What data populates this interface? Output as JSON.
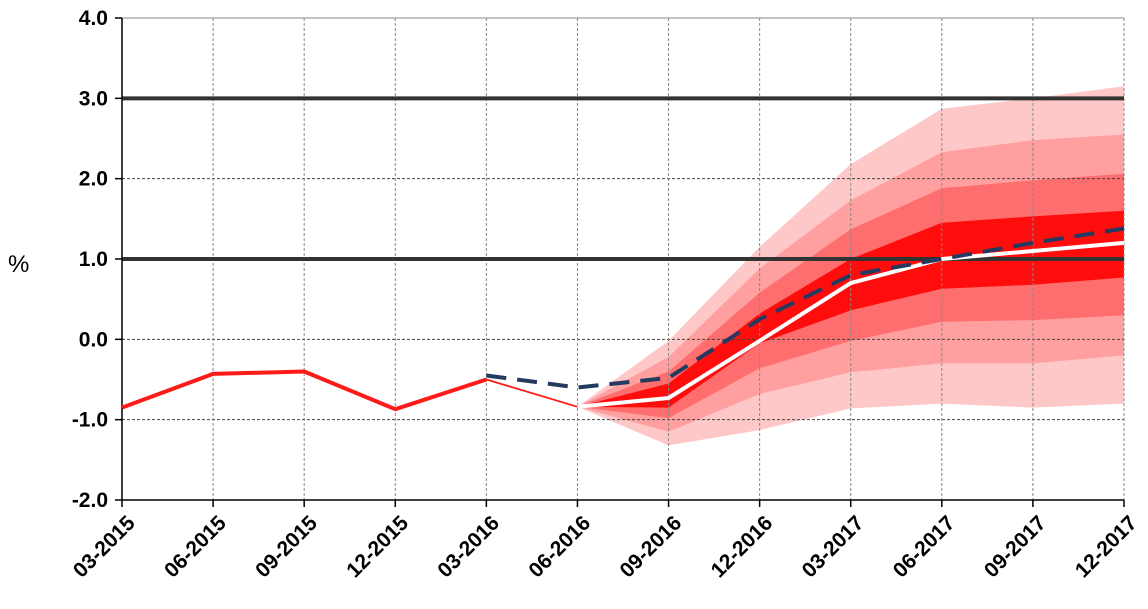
{
  "chart_data": {
    "type": "line",
    "title": "",
    "xlabel": "",
    "ylabel": "%",
    "ylim": [
      -2.0,
      4.0
    ],
    "y_ticks": [
      "4.0",
      "3.0",
      "2.0",
      "1.0",
      "0.0",
      "-1.0",
      "-2.0"
    ],
    "categories": [
      "03-2015",
      "06-2015",
      "09-2015",
      "12-2015",
      "03-2016",
      "06-2016",
      "09-2016",
      "12-2016",
      "03-2017",
      "06-2017",
      "09-2017",
      "12-2017"
    ],
    "grid": true,
    "reference_lines": [
      3.0,
      1.0
    ],
    "series": [
      {
        "values": [
          -0.85,
          -0.43,
          -0.4,
          -0.87,
          -0.5,
          null,
          null,
          null,
          null,
          null,
          null,
          null
        ],
        "color": "#ff1a1a",
        "style": "solid"
      },
      {
        "values": [
          null,
          null,
          null,
          null,
          -0.5,
          -0.84,
          null,
          null,
          null,
          null,
          null,
          null
        ],
        "color": "#ff1a1a",
        "style": "thin"
      },
      {
        "values": [
          null,
          null,
          null,
          null,
          null,
          -0.84,
          -0.73,
          -0.02,
          0.7,
          1.0,
          1.1,
          1.2
        ],
        "color": "#ffffff",
        "style": "solid"
      },
      {
        "values": [
          null,
          null,
          null,
          null,
          -0.45,
          -0.6,
          -0.48,
          0.25,
          0.8,
          1.0,
          1.2,
          1.38
        ],
        "color": "#243a5e",
        "style": "dashed"
      }
    ],
    "fan_chart": {
      "start_index": 5,
      "start_value": -0.84,
      "colors": [
        "#ffc8c8",
        "#ff9f9f",
        "#ff6e6e",
        "#ff0d0d"
      ],
      "bands": [
        {
          "upper": [
            -0.02,
            1.15,
            2.18,
            2.87,
            3.0,
            3.15
          ],
          "lower": [
            -1.32,
            -1.13,
            -0.86,
            -0.8,
            -0.85,
            -0.8
          ]
        },
        {
          "upper": [
            -0.22,
            0.88,
            1.73,
            2.33,
            2.48,
            2.55
          ],
          "lower": [
            -1.15,
            -0.68,
            -0.41,
            -0.3,
            -0.3,
            -0.2
          ]
        },
        {
          "upper": [
            -0.4,
            0.58,
            1.37,
            1.88,
            1.98,
            2.06
          ],
          "lower": [
            -0.98,
            -0.36,
            -0.02,
            0.22,
            0.24,
            0.3
          ]
        },
        {
          "upper": [
            -0.55,
            0.32,
            1.0,
            1.45,
            1.53,
            1.6
          ],
          "lower": [
            -0.85,
            -0.05,
            0.36,
            0.63,
            0.68,
            0.77
          ]
        }
      ]
    }
  }
}
